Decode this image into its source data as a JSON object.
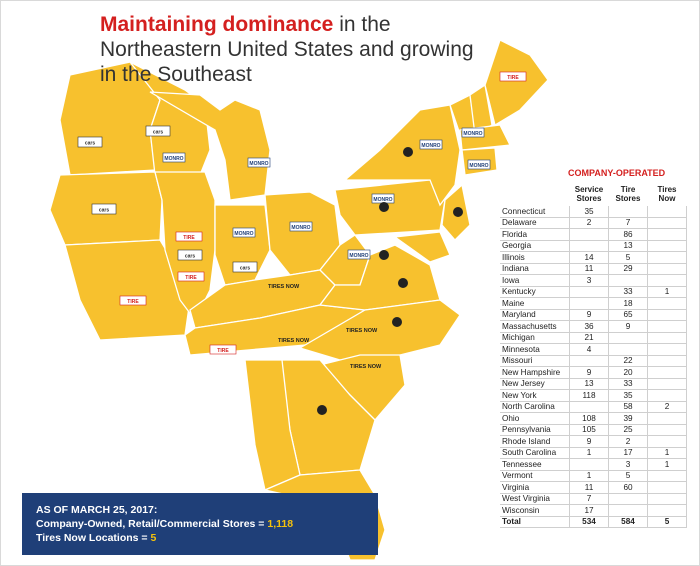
{
  "title": {
    "highlight": "Maintaining dominance",
    "rest": "in the Northeastern United States and growing in the Southeast"
  },
  "summary": {
    "date": "AS OF MARCH 25, 2017:",
    "stores_label": "Company-Owned, Retail/Commercial Stores =",
    "stores_value": "1,118",
    "tires_now_label": "Tires Now Locations =",
    "tires_now_value": "5"
  },
  "table": {
    "heading": "COMPANY-OPERATED",
    "columns": [
      "",
      "Service",
      "Stores",
      "Tire",
      "Stores",
      "Tires",
      "Now"
    ],
    "rows": [
      [
        "Connecticut",
        "35",
        "",
        ""
      ],
      [
        "Delaware",
        "2",
        "7",
        ""
      ],
      [
        "Florida",
        "",
        "86",
        ""
      ],
      [
        "Georgia",
        "",
        "13",
        ""
      ],
      [
        "Illinois",
        "14",
        "5",
        ""
      ],
      [
        "Indiana",
        "11",
        "29",
        ""
      ],
      [
        "Iowa",
        "3",
        "",
        ""
      ],
      [
        "Kentucky",
        "",
        "33",
        "1"
      ],
      [
        "Maine",
        "",
        "18",
        ""
      ],
      [
        "Maryland",
        "9",
        "65",
        ""
      ],
      [
        "Massachusetts",
        "36",
        "9",
        ""
      ],
      [
        "Michigan",
        "21",
        "",
        ""
      ],
      [
        "Minnesota",
        "4",
        "",
        ""
      ],
      [
        "Missouri",
        "",
        "22",
        ""
      ],
      [
        "New Hampshire",
        "9",
        "20",
        ""
      ],
      [
        "New Jersey",
        "13",
        "33",
        ""
      ],
      [
        "New York",
        "118",
        "35",
        ""
      ],
      [
        "North Carolina",
        "",
        "58",
        "2"
      ],
      [
        "Ohio",
        "108",
        "39",
        ""
      ],
      [
        "Pennsylvania",
        "105",
        "25",
        ""
      ],
      [
        "Rhode Island",
        "9",
        "2",
        ""
      ],
      [
        "South Carolina",
        "1",
        "17",
        "1"
      ],
      [
        "Tennessee",
        "",
        "3",
        "1"
      ],
      [
        "Vermont",
        "1",
        "5",
        ""
      ],
      [
        "Virginia",
        "11",
        "60",
        ""
      ],
      [
        "West Virginia",
        "7",
        "",
        ""
      ],
      [
        "Wisconsin",
        "17",
        "",
        ""
      ]
    ],
    "total": [
      "Total",
      "534",
      "584",
      "5"
    ]
  },
  "colors": {
    "map_fill": "#f7c12e",
    "title_highlight": "#d4201f",
    "summary_bg": "#1f3f78",
    "summary_value": "#f4c20d"
  }
}
